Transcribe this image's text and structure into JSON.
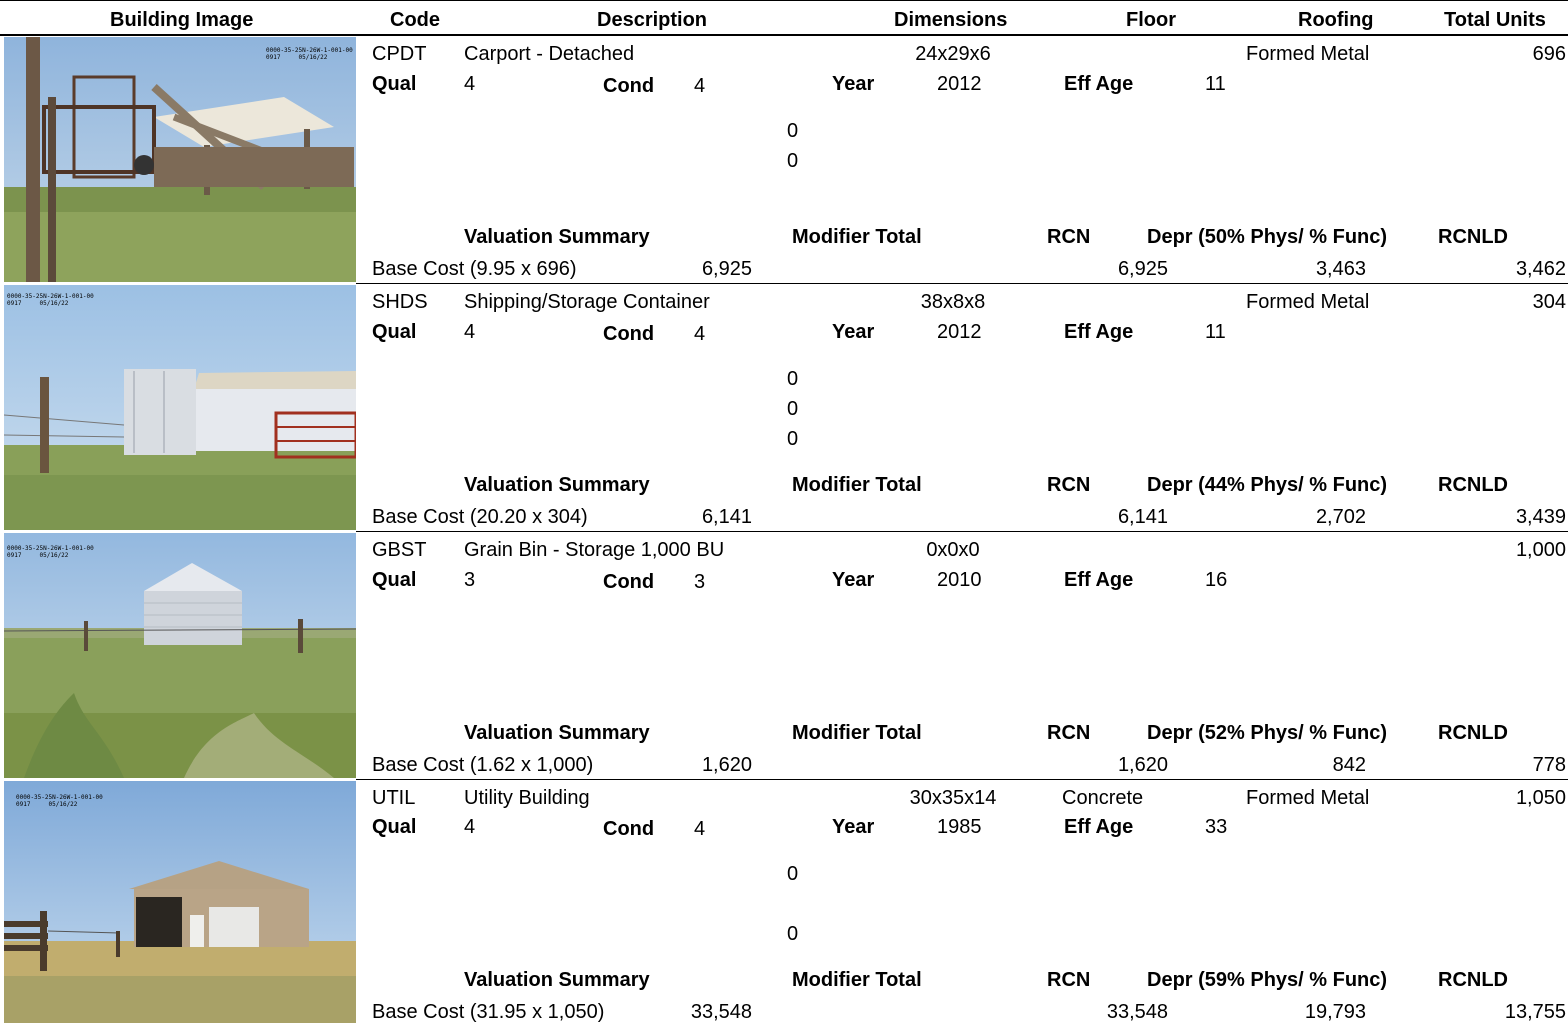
{
  "header": {
    "building_image": "Building Image",
    "code": "Code",
    "description": "Description",
    "dimensions": "Dimensions",
    "floor": "Floor",
    "roofing": "Roofing",
    "total_units": "Total Units"
  },
  "labels": {
    "qual": "Qual",
    "cond": "Cond",
    "year": "Year",
    "eff_age": "Eff Age",
    "valuation_summary": "Valuation Summary",
    "modifier_total": "Modifier Total",
    "rcn": "RCN",
    "rcnld": "RCNLD"
  },
  "records": [
    {
      "photo_stamp": "0000-35-25N-26W-1-001-00\n0917     05/16/22",
      "code": "CPDT",
      "description": "Carport - Detached",
      "dimensions": "24x29x6",
      "floor": "",
      "roofing": "Formed Metal",
      "total_units": "696",
      "qual": "4",
      "cond": "4",
      "year": "2012",
      "eff_age": "11",
      "modifiers": [
        "0",
        "0"
      ],
      "depr_label": "Depr (50% Phys/ % Func)",
      "base_cost_label": "Base Cost (9.95 x 696)",
      "base_cost": "6,925",
      "rcn": "6,925",
      "depr": "3,463",
      "rcnld": "3,462"
    },
    {
      "photo_stamp": "0000-35-25N-26W-1-001-00\n0917     05/16/22",
      "code": "SHDS",
      "description": "Shipping/Storage Container",
      "dimensions": "38x8x8",
      "floor": "",
      "roofing": "Formed Metal",
      "total_units": "304",
      "qual": "4",
      "cond": "4",
      "year": "2012",
      "eff_age": "11",
      "modifiers": [
        "0",
        "0",
        "0"
      ],
      "depr_label": "Depr (44% Phys/ % Func)",
      "base_cost_label": "Base Cost (20.20 x 304)",
      "base_cost": "6,141",
      "rcn": "6,141",
      "depr": "2,702",
      "rcnld": "3,439"
    },
    {
      "photo_stamp": "0000-35-25N-26W-1-001-00\n0917     05/16/22",
      "code": "GBST",
      "description": "Grain Bin - Storage 1,000 BU",
      "dimensions": "0x0x0",
      "floor": "",
      "roofing": "",
      "total_units": "1,000",
      "qual": "3",
      "cond": "3",
      "year": "2010",
      "eff_age": "16",
      "modifiers": [],
      "depr_label": "Depr (52% Phys/ % Func)",
      "base_cost_label": "Base Cost (1.62 x 1,000)",
      "base_cost": "1,620",
      "rcn": "1,620",
      "depr": "842",
      "rcnld": "778"
    },
    {
      "photo_stamp": "0000-35-25N-26W-1-001-00\n0917     05/16/22",
      "code": "UTIL",
      "description": "Utility Building",
      "dimensions": "30x35x14",
      "floor": "Concrete",
      "roofing": "Formed Metal",
      "total_units": "1,050",
      "qual": "4",
      "cond": "4",
      "year": "1985",
      "eff_age": "33",
      "modifiers": [
        "0",
        "",
        "0"
      ],
      "depr_label": "Depr (59% Phys/ % Func)",
      "base_cost_label": "Base Cost (31.95 x 1,050)",
      "base_cost": "33,548",
      "rcn": "33,548",
      "depr": "19,793",
      "rcnld": "13,755"
    }
  ]
}
